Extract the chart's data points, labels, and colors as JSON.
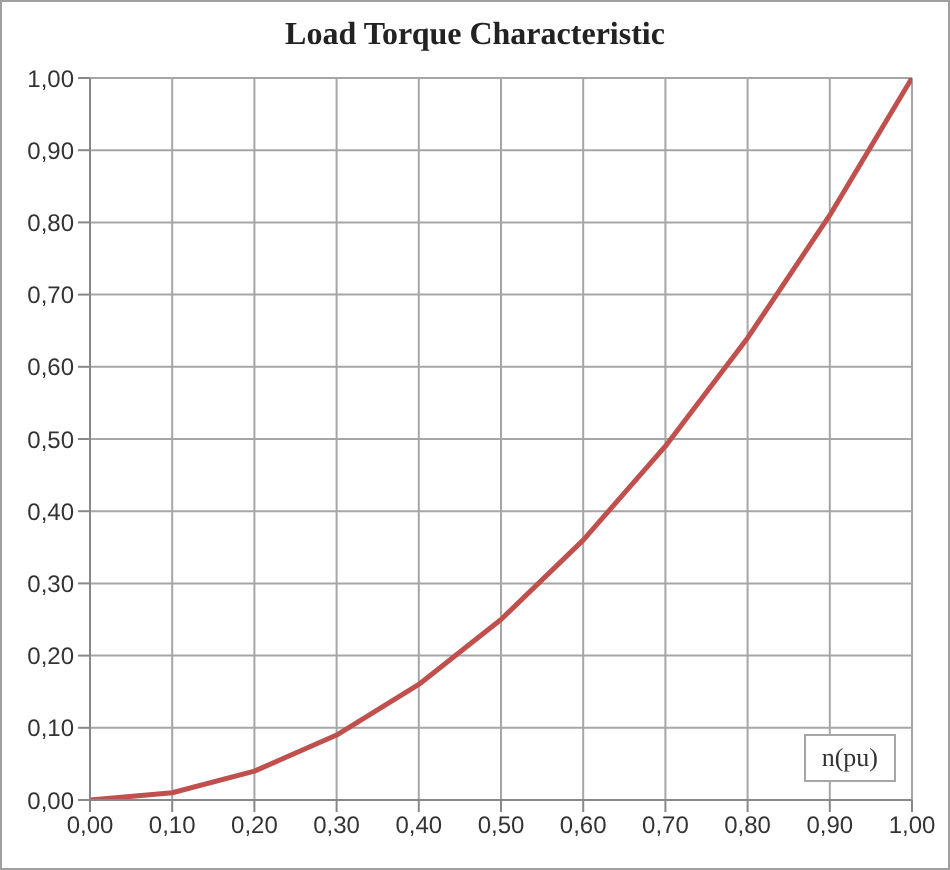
{
  "chart_data": {
    "type": "line",
    "title": "Load Torque Characteristic",
    "xlabel": "n(pu)",
    "x": [
      0,
      0.1,
      0.2,
      0.3,
      0.4,
      0.5,
      0.6,
      0.7,
      0.8,
      0.9,
      1
    ],
    "series": [
      {
        "color": "#c0504d",
        "values": [
          0,
          0.01,
          0.04,
          0.09,
          0.16,
          0.25,
          0.36,
          0.49,
          0.64,
          0.81,
          1
        ]
      }
    ],
    "xlim": [
      0,
      1
    ],
    "ylim": [
      0,
      1
    ],
    "xticks": [
      {
        "value": 0,
        "label": "0,00"
      },
      {
        "value": 0.1,
        "label": "0,10"
      },
      {
        "value": 0.2,
        "label": "0,20"
      },
      {
        "value": 0.3,
        "label": "0,30"
      },
      {
        "value": 0.4,
        "label": "0,40"
      },
      {
        "value": 0.5,
        "label": "0,50"
      },
      {
        "value": 0.6,
        "label": "0,60"
      },
      {
        "value": 0.7,
        "label": "0,70"
      },
      {
        "value": 0.8,
        "label": "0,80"
      },
      {
        "value": 0.9,
        "label": "0,90"
      },
      {
        "value": 1,
        "label": "1,00"
      }
    ],
    "yticks": [
      {
        "value": 0,
        "label": "0,00"
      },
      {
        "value": 0.1,
        "label": "0,10"
      },
      {
        "value": 0.2,
        "label": "0,20"
      },
      {
        "value": 0.3,
        "label": "0,30"
      },
      {
        "value": 0.4,
        "label": "0,40"
      },
      {
        "value": 0.5,
        "label": "0,50"
      },
      {
        "value": 0.6,
        "label": "0,60"
      },
      {
        "value": 0.7,
        "label": "0,70"
      },
      {
        "value": 0.8,
        "label": "0,80"
      },
      {
        "value": 0.9,
        "label": "0,90"
      },
      {
        "value": 1,
        "label": "1,00"
      }
    ],
    "grid": true,
    "marker": "none",
    "line_style": "solid"
  }
}
